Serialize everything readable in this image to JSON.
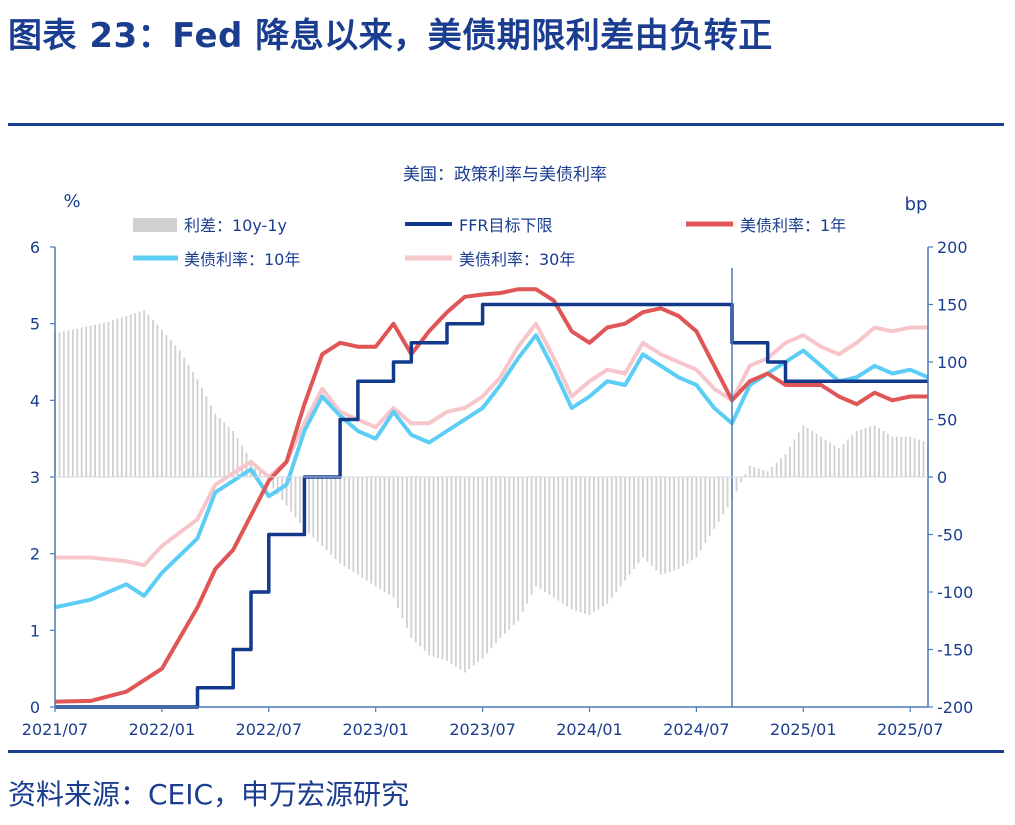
{
  "figure": {
    "title": "图表 23：Fed 降息以来，美债期限利差由负转正",
    "source": "资料来源：CEIC，申万宏源研究"
  },
  "chart_data": {
    "type": "line",
    "title": "美国：政策利率与美债利率",
    "left_unit": "%",
    "right_unit": "bp",
    "ylim_left": [
      0,
      6
    ],
    "ylim_right": [
      -200,
      200
    ],
    "left_ticks": [
      "0",
      "1",
      "2",
      "3",
      "4",
      "5",
      "6"
    ],
    "right_ticks": [
      "-200",
      "-150",
      "-100",
      "-50",
      "0",
      "50",
      "100",
      "150",
      "200"
    ],
    "x_ticks": [
      "2021/07",
      "2022/01",
      "2022/07",
      "2023/01",
      "2023/07",
      "2024/01",
      "2024/07",
      "2025/01",
      "2025/07"
    ],
    "x_range": [
      "2021-07",
      "2025-08"
    ],
    "vertical_marker": "2024-09",
    "legend": {
      "spread": "利差：10y-1y",
      "ffr": "FFR目标下限",
      "y1": "美债利率：1年",
      "y10": "美债利率：10年",
      "y30": "美债利率：30年"
    },
    "colors": {
      "spread": "#d0d0d0",
      "ffr": "#12398c",
      "y1": "#e05555",
      "y10": "#5ccdf5",
      "y30": "#f6c6cb",
      "axis": "#4a7ab5",
      "marker": "#4a7ab5"
    },
    "series": [
      {
        "name": "FFR目标下限",
        "axis": "left",
        "type": "step",
        "points": [
          [
            "2021-07",
            0
          ],
          [
            "2022-03",
            0.25
          ],
          [
            "2022-05",
            0.75
          ],
          [
            "2022-06",
            1.5
          ],
          [
            "2022-07",
            2.25
          ],
          [
            "2022-09",
            3.0
          ],
          [
            "2022-11",
            3.75
          ],
          [
            "2022-12",
            4.25
          ],
          [
            "2023-02",
            4.5
          ],
          [
            "2023-03",
            4.75
          ],
          [
            "2023-05",
            5.0
          ],
          [
            "2023-07",
            5.25
          ],
          [
            "2024-09",
            4.75
          ],
          [
            "2024-11",
            4.5
          ],
          [
            "2024-12",
            4.25
          ],
          [
            "2025-08",
            4.25
          ]
        ]
      },
      {
        "name": "利差：10y-1y",
        "axis": "right",
        "type": "bar",
        "points": [
          [
            "2021-07",
            125
          ],
          [
            "2021-10",
            135
          ],
          [
            "2021-12",
            145
          ],
          [
            "2022-01",
            128
          ],
          [
            "2022-02",
            110
          ],
          [
            "2022-03",
            85
          ],
          [
            "2022-04",
            55
          ],
          [
            "2022-05",
            40
          ],
          [
            "2022-06",
            15
          ],
          [
            "2022-07",
            -5
          ],
          [
            "2022-08",
            -25
          ],
          [
            "2022-09",
            -45
          ],
          [
            "2022-10",
            -60
          ],
          [
            "2022-11",
            -75
          ],
          [
            "2022-12",
            -85
          ],
          [
            "2023-01",
            -95
          ],
          [
            "2023-02",
            -105
          ],
          [
            "2023-03",
            -140
          ],
          [
            "2023-04",
            -155
          ],
          [
            "2023-05",
            -160
          ],
          [
            "2023-06",
            -170
          ],
          [
            "2023-07",
            -158
          ],
          [
            "2023-08",
            -140
          ],
          [
            "2023-09",
            -125
          ],
          [
            "2023-10",
            -95
          ],
          [
            "2023-11",
            -105
          ],
          [
            "2023-12",
            -115
          ],
          [
            "2024-01",
            -120
          ],
          [
            "2024-02",
            -110
          ],
          [
            "2024-03",
            -90
          ],
          [
            "2024-04",
            -70
          ],
          [
            "2024-05",
            -85
          ],
          [
            "2024-06",
            -80
          ],
          [
            "2024-07",
            -70
          ],
          [
            "2024-08",
            -45
          ],
          [
            "2024-09",
            -20
          ],
          [
            "2024-10",
            10
          ],
          [
            "2024-11",
            5
          ],
          [
            "2024-12",
            20
          ],
          [
            "2025-01",
            45
          ],
          [
            "2025-02",
            35
          ],
          [
            "2025-03",
            25
          ],
          [
            "2025-04",
            40
          ],
          [
            "2025-05",
            45
          ],
          [
            "2025-06",
            35
          ],
          [
            "2025-07",
            35
          ],
          [
            "2025-08",
            30
          ]
        ]
      },
      {
        "name": "美债利率：1年",
        "axis": "left",
        "type": "line",
        "points": [
          [
            "2021-07",
            0.07
          ],
          [
            "2021-09",
            0.08
          ],
          [
            "2021-11",
            0.2
          ],
          [
            "2022-01",
            0.5
          ],
          [
            "2022-03",
            1.3
          ],
          [
            "2022-04",
            1.8
          ],
          [
            "2022-05",
            2.05
          ],
          [
            "2022-06",
            2.5
          ],
          [
            "2022-07",
            2.95
          ],
          [
            "2022-08",
            3.2
          ],
          [
            "2022-09",
            3.95
          ],
          [
            "2022-10",
            4.6
          ],
          [
            "2022-11",
            4.75
          ],
          [
            "2022-12",
            4.7
          ],
          [
            "2023-01",
            4.7
          ],
          [
            "2023-02",
            5.0
          ],
          [
            "2023-03",
            4.6
          ],
          [
            "2023-04",
            4.9
          ],
          [
            "2023-05",
            5.15
          ],
          [
            "2023-06",
            5.35
          ],
          [
            "2023-07",
            5.38
          ],
          [
            "2023-08",
            5.4
          ],
          [
            "2023-09",
            5.45
          ],
          [
            "2023-10",
            5.45
          ],
          [
            "2023-11",
            5.3
          ],
          [
            "2023-12",
            4.9
          ],
          [
            "2024-01",
            4.75
          ],
          [
            "2024-02",
            4.95
          ],
          [
            "2024-03",
            5.0
          ],
          [
            "2024-04",
            5.15
          ],
          [
            "2024-05",
            5.2
          ],
          [
            "2024-06",
            5.1
          ],
          [
            "2024-07",
            4.9
          ],
          [
            "2024-08",
            4.45
          ],
          [
            "2024-09",
            4.0
          ],
          [
            "2024-10",
            4.25
          ],
          [
            "2024-11",
            4.35
          ],
          [
            "2024-12",
            4.2
          ],
          [
            "2025-01",
            4.2
          ],
          [
            "2025-02",
            4.2
          ],
          [
            "2025-03",
            4.05
          ],
          [
            "2025-04",
            3.95
          ],
          [
            "2025-05",
            4.1
          ],
          [
            "2025-06",
            4.0
          ],
          [
            "2025-07",
            4.05
          ],
          [
            "2025-08",
            4.05
          ]
        ]
      },
      {
        "name": "美债利率：10年",
        "axis": "left",
        "type": "line",
        "points": [
          [
            "2021-07",
            1.3
          ],
          [
            "2021-09",
            1.4
          ],
          [
            "2021-11",
            1.6
          ],
          [
            "2021-12",
            1.45
          ],
          [
            "2022-01",
            1.75
          ],
          [
            "2022-03",
            2.2
          ],
          [
            "2022-04",
            2.8
          ],
          [
            "2022-05",
            2.95
          ],
          [
            "2022-06",
            3.1
          ],
          [
            "2022-07",
            2.75
          ],
          [
            "2022-08",
            2.9
          ],
          [
            "2022-09",
            3.6
          ],
          [
            "2022-10",
            4.05
          ],
          [
            "2022-11",
            3.8
          ],
          [
            "2022-12",
            3.6
          ],
          [
            "2023-01",
            3.5
          ],
          [
            "2023-02",
            3.85
          ],
          [
            "2023-03",
            3.55
          ],
          [
            "2023-04",
            3.45
          ],
          [
            "2023-05",
            3.6
          ],
          [
            "2023-06",
            3.75
          ],
          [
            "2023-07",
            3.9
          ],
          [
            "2023-08",
            4.2
          ],
          [
            "2023-09",
            4.55
          ],
          [
            "2023-10",
            4.85
          ],
          [
            "2023-11",
            4.4
          ],
          [
            "2023-12",
            3.9
          ],
          [
            "2024-01",
            4.05
          ],
          [
            "2024-02",
            4.25
          ],
          [
            "2024-03",
            4.2
          ],
          [
            "2024-04",
            4.6
          ],
          [
            "2024-05",
            4.45
          ],
          [
            "2024-06",
            4.3
          ],
          [
            "2024-07",
            4.2
          ],
          [
            "2024-08",
            3.9
          ],
          [
            "2024-09",
            3.7
          ],
          [
            "2024-10",
            4.2
          ],
          [
            "2024-11",
            4.35
          ],
          [
            "2024-12",
            4.5
          ],
          [
            "2025-01",
            4.65
          ],
          [
            "2025-02",
            4.45
          ],
          [
            "2025-03",
            4.25
          ],
          [
            "2025-04",
            4.3
          ],
          [
            "2025-05",
            4.45
          ],
          [
            "2025-06",
            4.35
          ],
          [
            "2025-07",
            4.4
          ],
          [
            "2025-08",
            4.3
          ]
        ]
      },
      {
        "name": "美债利率：30年",
        "axis": "left",
        "type": "line",
        "points": [
          [
            "2021-07",
            1.95
          ],
          [
            "2021-09",
            1.95
          ],
          [
            "2021-11",
            1.9
          ],
          [
            "2021-12",
            1.85
          ],
          [
            "2022-01",
            2.1
          ],
          [
            "2022-03",
            2.45
          ],
          [
            "2022-04",
            2.9
          ],
          [
            "2022-05",
            3.05
          ],
          [
            "2022-06",
            3.2
          ],
          [
            "2022-07",
            3.0
          ],
          [
            "2022-08",
            3.2
          ],
          [
            "2022-09",
            3.7
          ],
          [
            "2022-10",
            4.15
          ],
          [
            "2022-11",
            3.85
          ],
          [
            "2022-12",
            3.75
          ],
          [
            "2023-01",
            3.65
          ],
          [
            "2023-02",
            3.9
          ],
          [
            "2023-03",
            3.7
          ],
          [
            "2023-04",
            3.7
          ],
          [
            "2023-05",
            3.85
          ],
          [
            "2023-06",
            3.9
          ],
          [
            "2023-07",
            4.05
          ],
          [
            "2023-08",
            4.3
          ],
          [
            "2023-09",
            4.7
          ],
          [
            "2023-10",
            5.0
          ],
          [
            "2023-11",
            4.55
          ],
          [
            "2023-12",
            4.05
          ],
          [
            "2024-01",
            4.25
          ],
          [
            "2024-02",
            4.4
          ],
          [
            "2024-03",
            4.35
          ],
          [
            "2024-04",
            4.75
          ],
          [
            "2024-05",
            4.6
          ],
          [
            "2024-06",
            4.5
          ],
          [
            "2024-07",
            4.4
          ],
          [
            "2024-08",
            4.15
          ],
          [
            "2024-09",
            4.0
          ],
          [
            "2024-10",
            4.45
          ],
          [
            "2024-11",
            4.55
          ],
          [
            "2024-12",
            4.75
          ],
          [
            "2025-01",
            4.85
          ],
          [
            "2025-02",
            4.7
          ],
          [
            "2025-03",
            4.6
          ],
          [
            "2025-04",
            4.75
          ],
          [
            "2025-05",
            4.95
          ],
          [
            "2025-06",
            4.9
          ],
          [
            "2025-07",
            4.95
          ],
          [
            "2025-08",
            4.95
          ]
        ]
      }
    ]
  }
}
